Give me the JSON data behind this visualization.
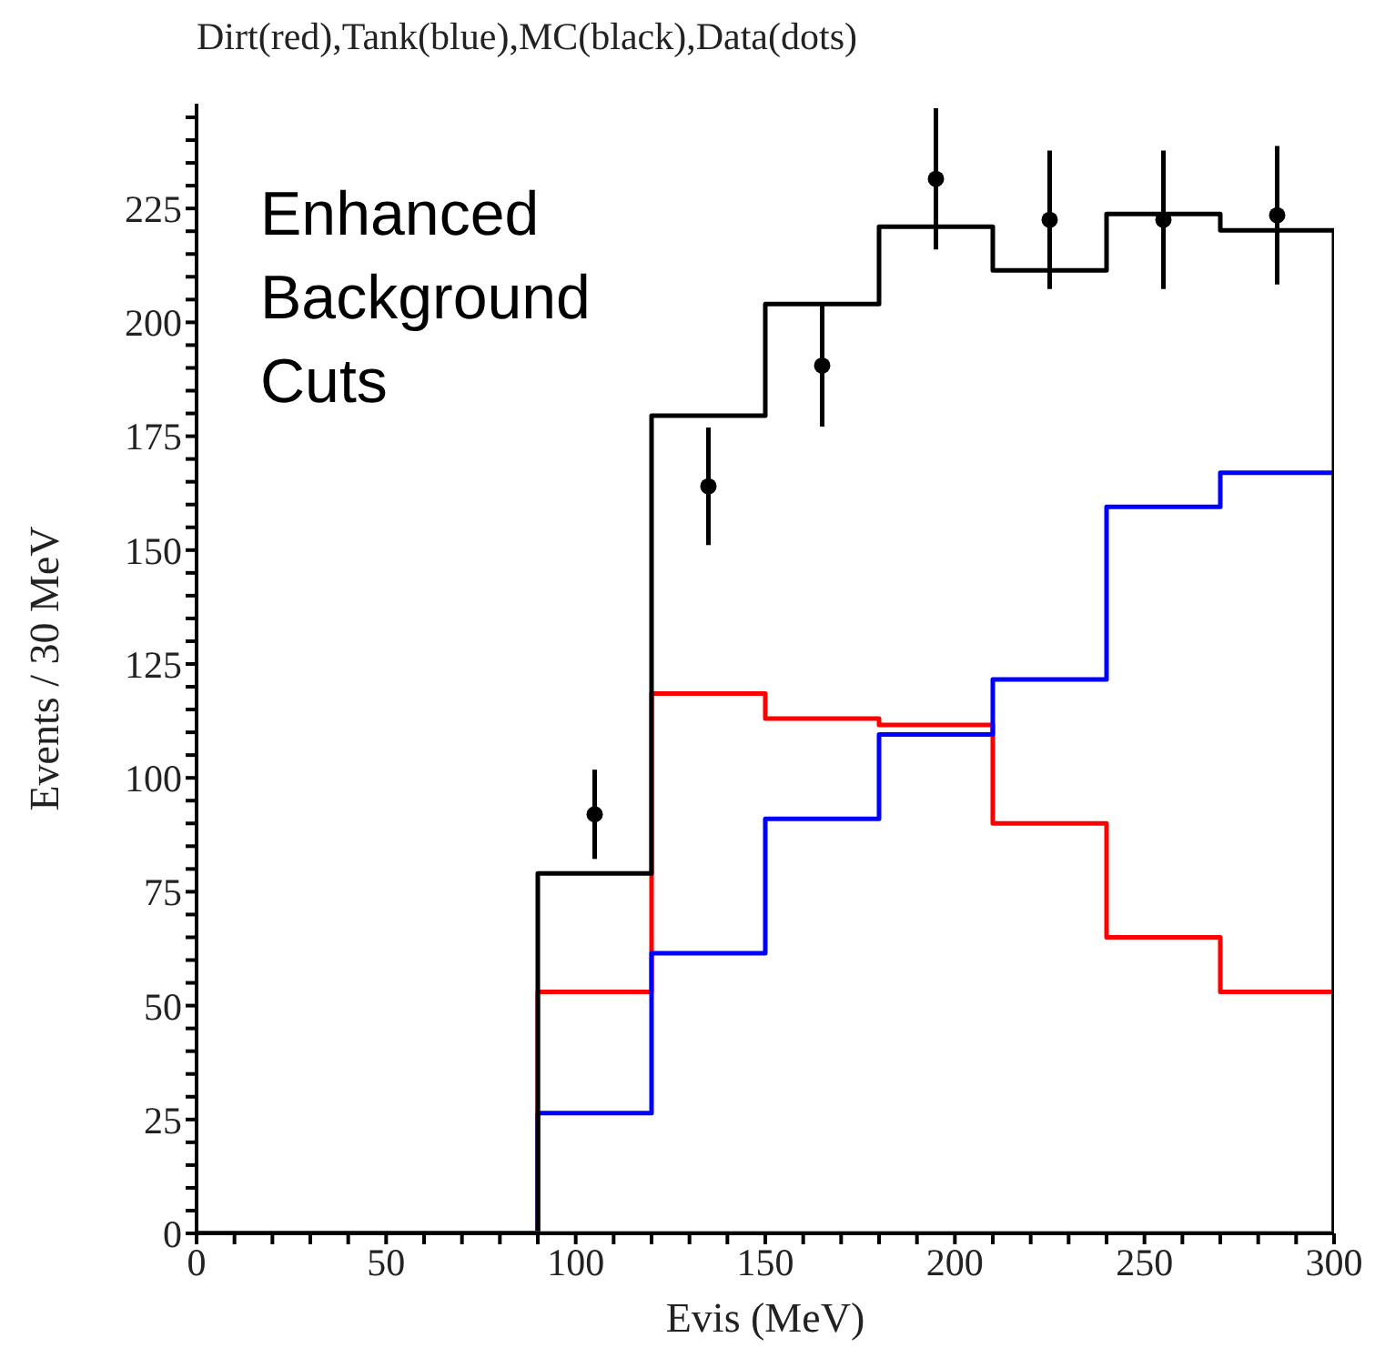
{
  "chart_data": {
    "type": "histogram",
    "title": "Dirt(red),Tank(blue),MC(black),Data(dots)",
    "xlabel": "Evis (MeV)",
    "ylabel": "Events / 30 MeV",
    "annotations": [
      "Enhanced Background Cuts"
    ],
    "bins": [
      0,
      30,
      60,
      90,
      120,
      150,
      180,
      210,
      240,
      270,
      300
    ],
    "series": [
      {
        "color": "#ff0000",
        "values": [
          0,
          0,
          0,
          53,
          118.5,
          113,
          111.6,
          90,
          65,
          53
        ]
      },
      {
        "color": "#0000ff",
        "values": [
          0,
          0,
          0,
          26.4,
          61.5,
          91,
          109.5,
          121.6,
          159.5,
          167
        ]
      },
      {
        "color": "#000000",
        "values": [
          0,
          0,
          0,
          79,
          179.5,
          204,
          221,
          211.4,
          223.8,
          220.2
        ]
      },
      {
        "color": "#cc00cc",
        "values": [
          0,
          0,
          0,
          0,
          0,
          0,
          0,
          0,
          0,
          0
        ]
      },
      {
        "type": "scatter",
        "color": "#000000",
        "x": [
          105,
          135,
          165,
          195,
          225,
          255,
          285
        ],
        "values": [
          92,
          164,
          190.5,
          231.5,
          222.5,
          222.5,
          223.5
        ],
        "errors": [
          9.8,
          12.9,
          13.4,
          15.5,
          15.2,
          15.2,
          15.2
        ]
      }
    ],
    "marker": "circle",
    "legend": false,
    "grid": false,
    "xlim": [
      0,
      300
    ],
    "xticks": [
      0,
      {
        "value": 10,
        "label": null
      },
      {
        "value": 20,
        "label": null
      },
      {
        "value": 30,
        "label": null
      },
      {
        "value": 40,
        "label": null
      },
      50,
      {
        "value": 60,
        "label": null
      },
      {
        "value": 70,
        "label": null
      },
      {
        "value": 80,
        "label": null
      },
      {
        "value": 90,
        "label": null
      },
      100,
      {
        "value": 110,
        "label": null
      },
      {
        "value": 120,
        "label": null
      },
      {
        "value": 130,
        "label": null
      },
      {
        "value": 140,
        "label": null
      },
      150,
      {
        "value": 160,
        "label": null
      },
      {
        "value": 170,
        "label": null
      },
      {
        "value": 180,
        "label": null
      },
      {
        "value": 190,
        "label": null
      },
      200,
      {
        "value": 210,
        "label": null
      },
      {
        "value": 220,
        "label": null
      },
      {
        "value": 230,
        "label": null
      },
      {
        "value": 240,
        "label": null
      },
      250,
      {
        "value": 260,
        "label": null
      },
      {
        "value": 270,
        "label": null
      },
      {
        "value": 280,
        "label": null
      },
      {
        "value": 290,
        "label": null
      },
      300
    ],
    "ylim": [
      0,
      248
    ],
    "yticks": [
      0,
      {
        "value": 5,
        "label": null
      },
      {
        "value": 10,
        "label": null
      },
      {
        "value": 15,
        "label": null
      },
      {
        "value": 20,
        "label": null
      },
      25,
      {
        "value": 30,
        "label": null
      },
      {
        "value": 35,
        "label": null
      },
      {
        "value": 40,
        "label": null
      },
      {
        "value": 45,
        "label": null
      },
      50,
      {
        "value": 55,
        "label": null
      },
      {
        "value": 60,
        "label": null
      },
      {
        "value": 65,
        "label": null
      },
      {
        "value": 70,
        "label": null
      },
      75,
      {
        "value": 80,
        "label": null
      },
      {
        "value": 85,
        "label": null
      },
      {
        "value": 90,
        "label": null
      },
      {
        "value": 95,
        "label": null
      },
      100,
      {
        "value": 105,
        "label": null
      },
      {
        "value": 110,
        "label": null
      },
      {
        "value": 115,
        "label": null
      },
      {
        "value": 120,
        "label": null
      },
      125,
      {
        "value": 130,
        "label": null
      },
      {
        "value": 135,
        "label": null
      },
      {
        "value": 140,
        "label": null
      },
      {
        "value": 145,
        "label": null
      },
      150,
      {
        "value": 155,
        "label": null
      },
      {
        "value": 160,
        "label": null
      },
      {
        "value": 165,
        "label": null
      },
      {
        "value": 170,
        "label": null
      },
      175,
      {
        "value": 180,
        "label": null
      },
      {
        "value": 185,
        "label": null
      },
      {
        "value": 190,
        "label": null
      },
      {
        "value": 195,
        "label": null
      },
      200,
      {
        "value": 205,
        "label": null
      },
      {
        "value": 210,
        "label": null
      },
      {
        "value": 215,
        "label": null
      },
      {
        "value": 220,
        "label": null
      },
      225,
      {
        "value": 230,
        "label": null
      },
      {
        "value": 235,
        "label": null
      },
      {
        "value": 240,
        "label": null
      },
      {
        "value": 245,
        "label": null
      }
    ]
  }
}
